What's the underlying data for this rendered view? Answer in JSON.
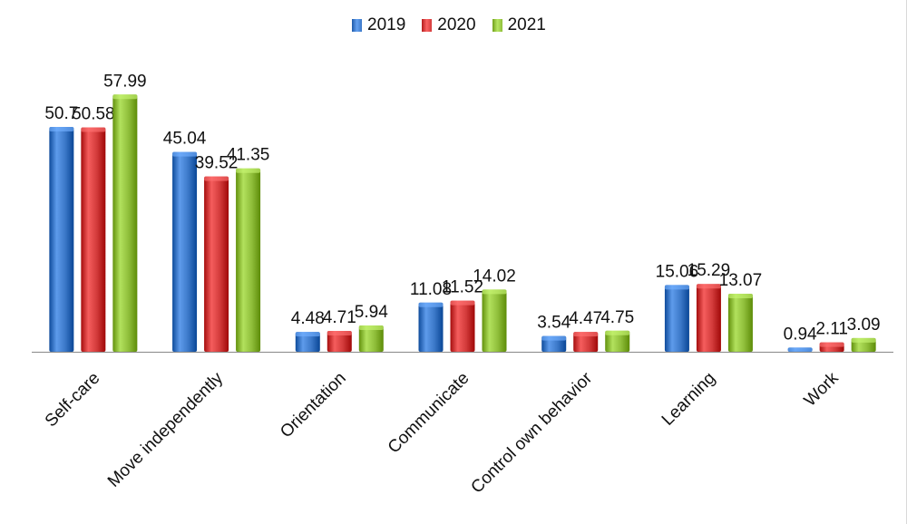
{
  "chart_data": {
    "type": "bar",
    "title": "",
    "xlabel": "",
    "ylabel": "",
    "ylim": [
      0,
      65
    ],
    "grid": false,
    "legend_position": "top",
    "categories": [
      "Self-care",
      "Move independently",
      "Orientation",
      "Communicate",
      "Control own behavior",
      "Learning",
      "Work"
    ],
    "series": [
      {
        "name": "2019",
        "color": "#3b78c8",
        "values": [
          50.7,
          45.04,
          4.48,
          11.08,
          3.54,
          15.06,
          0.94
        ],
        "labels": [
          "50.7",
          "45.04",
          "4.48",
          "11.08",
          "3.54",
          "15.06",
          "0.94"
        ]
      },
      {
        "name": "2020",
        "color": "#d23a3a",
        "values": [
          50.58,
          39.52,
          4.71,
          11.52,
          4.47,
          15.29,
          2.11
        ],
        "labels": [
          "50.58",
          "39.52",
          "4.71",
          "11.52",
          "4.47",
          "15.29",
          "2.11"
        ]
      },
      {
        "name": "2021",
        "color": "#8fbe3a",
        "values": [
          57.99,
          41.35,
          5.94,
          14.02,
          4.75,
          13.07,
          3.09
        ],
        "labels": [
          "57.99",
          "41.35",
          "5.94",
          "14.02",
          "4.75",
          "13.07",
          "3.09"
        ]
      }
    ]
  }
}
